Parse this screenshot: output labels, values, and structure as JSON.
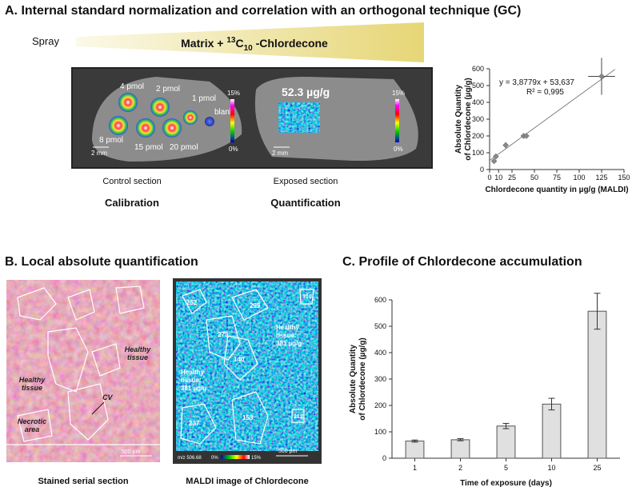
{
  "panel_a": {
    "title": "A. Internal standard normalization and correlation with an orthogonal technique (GC)",
    "spray": "Spray",
    "matrix": [
      "Matrix + ",
      "13",
      "C",
      "10",
      " -Chlordecone"
    ],
    "control": {
      "spots": [
        "4 pmol",
        "2 pmol",
        "1 pmol",
        "blank",
        "8 pmol",
        "15 pmol",
        "20 pmol"
      ],
      "scale_bar": "2 mm",
      "colorbar": [
        "15%",
        "0%"
      ],
      "caption": "Control section",
      "label": "Calibration"
    },
    "exposed": {
      "value": "52.3 µg/g",
      "scale_bar": "2 mm",
      "colorbar": [
        "15%",
        "0%"
      ],
      "caption": "Exposed section",
      "label": "Quantification"
    }
  },
  "panel_b": {
    "title": "B. Local absolute quantification",
    "stained": {
      "labels": [
        [
          "Healthy",
          "tissue"
        ],
        [
          "Healthy",
          "tissue"
        ],
        [
          "Necrotic",
          "area"
        ],
        [
          "CV"
        ]
      ],
      "scale_bar": "500 µm",
      "caption": "Stained serial section"
    },
    "maldi": {
      "regions": [
        "252",
        "295",
        "310",
        "273",
        "140",
        "237",
        "153",
        "212"
      ],
      "healthy": [
        [
          "Healthy",
          "tissue:",
          "381 µg/g"
        ],
        [
          "Healthy",
          "tissue:",
          "381 µg/g"
        ]
      ],
      "mz": "m/z 506.68",
      "colorbar": [
        "0%",
        "15%"
      ],
      "scale_bar": "500 µm",
      "caption": "MALDI image of Chlordecone"
    }
  },
  "panel_c": {
    "title": "C. Profile of Chlordecone accumulation"
  },
  "chart_data": [
    {
      "type": "scatter",
      "x": [
        5,
        7,
        18,
        38,
        41,
        125
      ],
      "values": [
        50,
        78,
        145,
        200,
        200,
        555
      ],
      "yerr": [
        10,
        12,
        18,
        8,
        8,
        110
      ],
      "xerr": [
        1,
        1,
        2,
        3,
        3,
        15
      ],
      "color": "#888888",
      "trendline": {
        "slope": 3.8779,
        "intercept": 53.637
      },
      "annotations": [
        "y = 3,8779x + 53,637",
        "R² = 0,995"
      ],
      "xlabel": "Chlordecone quantity in µg/g (MALDI)",
      "ylabel": [
        "Absolute Quantity",
        "of Chlordecone (µg/g)"
      ],
      "xlim": [
        0,
        150
      ],
      "ylim": [
        0,
        600
      ],
      "xticks": [
        0,
        10,
        25,
        50,
        75,
        100,
        125,
        150
      ],
      "yticks": [
        0,
        100,
        200,
        300,
        400,
        500,
        600
      ]
    },
    {
      "type": "bar",
      "categories": [
        "1",
        "2",
        "5",
        "10",
        "25"
      ],
      "values": [
        65,
        70,
        122,
        205,
        557
      ],
      "errors": [
        4,
        4,
        10,
        22,
        68
      ],
      "color": "#e0e0e0",
      "xlabel": "Time of exposure (days)",
      "ylabel": [
        "Absolute Quantity",
        "of Chlordecone (µg/g)"
      ],
      "ylim": [
        0,
        600
      ],
      "yticks": [
        0,
        100,
        200,
        300,
        400,
        500,
        600
      ]
    }
  ]
}
